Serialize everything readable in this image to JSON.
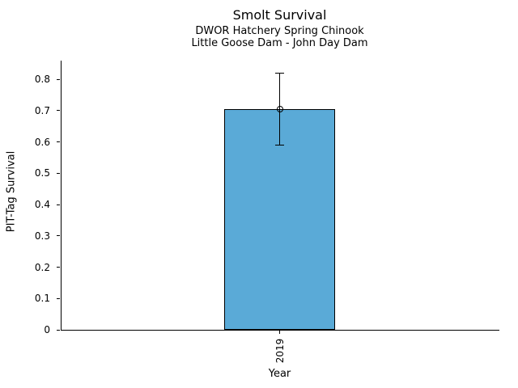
{
  "chart_data": {
    "type": "bar",
    "title": "Smolt Survival",
    "subtitle_lines": [
      "DWOR Hatchery Spring Chinook",
      "Little Goose Dam - John Day Dam"
    ],
    "xlabel": "Year",
    "ylabel": "PIT-Tag Survival",
    "categories": [
      "2019"
    ],
    "values": [
      0.705
    ],
    "error_bars": [
      {
        "low": 0.59,
        "high": 0.82
      }
    ],
    "ylim": [
      0,
      0.86
    ],
    "yticks": [
      0,
      0.1,
      0.2,
      0.3,
      0.4,
      0.5,
      0.6,
      0.7,
      0.8
    ],
    "ytick_labels": [
      "0",
      "0.1",
      "0.2",
      "0.3",
      "0.4",
      "0.5",
      "0.6",
      "0.7",
      "0.8"
    ],
    "grid": false,
    "legend": null,
    "marker": "open-circle",
    "bar_color": "#5AAAD7",
    "bar_edge_color": "#000000",
    "errorbar_color": "#000000",
    "background_color": "#FFFFFF"
  }
}
